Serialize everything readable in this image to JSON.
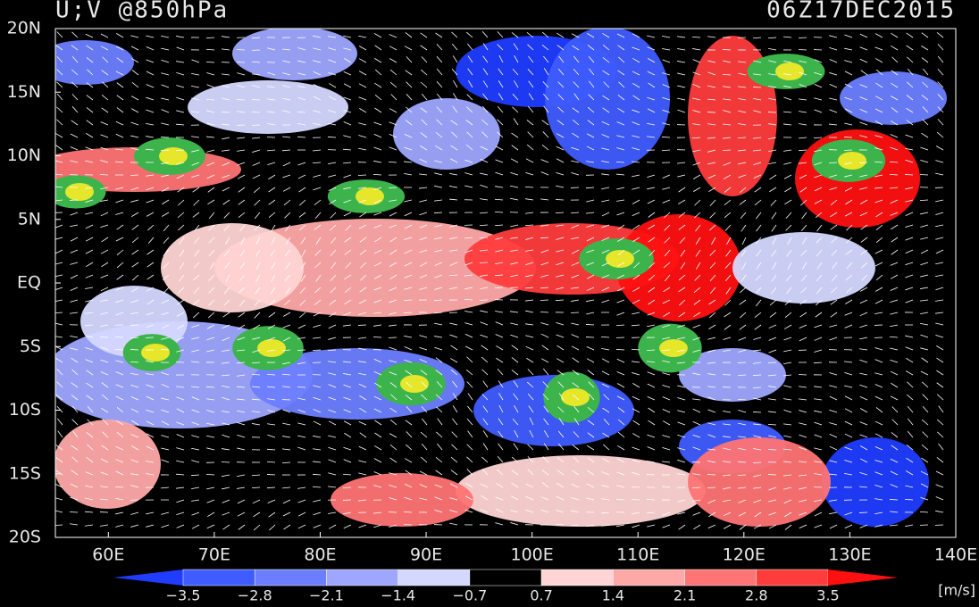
{
  "header": {
    "title": "U;V @850hPa",
    "time": "06Z17DEC2015"
  },
  "map": {
    "lonlim": [
      55,
      140
    ],
    "latlim": [
      -20,
      20
    ],
    "lat_ticks": [
      {
        "value": 20,
        "label": "20N"
      },
      {
        "value": 15,
        "label": "15N"
      },
      {
        "value": 10,
        "label": "10N"
      },
      {
        "value": 5,
        "label": "5N"
      },
      {
        "value": 0,
        "label": "EQ"
      },
      {
        "value": -5,
        "label": "5S"
      },
      {
        "value": -10,
        "label": "10S"
      },
      {
        "value": -15,
        "label": "15S"
      },
      {
        "value": -20,
        "label": "20S"
      }
    ],
    "lon_ticks": [
      {
        "value": 60,
        "label": "60E"
      },
      {
        "value": 70,
        "label": "70E"
      },
      {
        "value": 80,
        "label": "80E"
      },
      {
        "value": 90,
        "label": "90E"
      },
      {
        "value": 100,
        "label": "100E"
      },
      {
        "value": 110,
        "label": "110E"
      },
      {
        "value": 120,
        "label": "120E"
      },
      {
        "value": 130,
        "label": "130E"
      },
      {
        "value": 140,
        "label": "140E"
      }
    ]
  },
  "colorbar": {
    "levels": [
      {
        "value": -3.5,
        "label": "−3.5"
      },
      {
        "value": -2.8,
        "label": "−2.8"
      },
      {
        "value": -2.1,
        "label": "−2.1"
      },
      {
        "value": -1.4,
        "label": "−1.4"
      },
      {
        "value": -0.7,
        "label": "−0.7"
      },
      0.7,
      1.4,
      2.1,
      2.8,
      3.5
    ],
    "colors": [
      "#1f3cff",
      "#3f5cff",
      "#6c7eff",
      "#9ea6ff",
      "#d4d8ff",
      "#000000",
      "#ffd4d4",
      "#ffa8a8",
      "#ff7474",
      "#ff3c3c",
      "#ff1010"
    ],
    "units": "[m/s]"
  }
}
